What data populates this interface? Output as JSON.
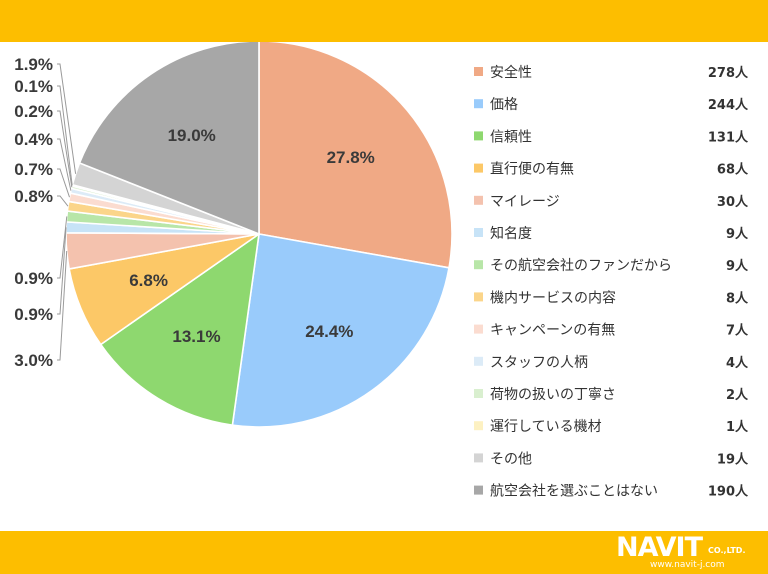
{
  "colors": {
    "band": "#FDBE00",
    "line": "#9a9a9a"
  },
  "chart_data": {
    "type": "pie",
    "categories": [
      "安全性",
      "価格",
      "信頼性",
      "直行便の有無",
      "マイレージ",
      "知名度",
      "その航空会社のファンだから",
      "機内サービスの内容",
      "キャンペーンの有無",
      "スタッフの人柄",
      "荷物の扱いの丁寧さ",
      "運行している機材",
      "その他",
      "航空会社を選ぶことはない"
    ],
    "values": [
      278,
      244,
      131,
      68,
      30,
      9,
      9,
      8,
      7,
      4,
      2,
      1,
      19,
      190
    ],
    "percent_labels": [
      "27.8%",
      "24.4%",
      "13.1%",
      "6.8%",
      "3.0%",
      "0.9%",
      "0.9%",
      "0.8%",
      "0.7%",
      "0.4%",
      "0.2%",
      "0.1%",
      "1.9%",
      "19.0%"
    ],
    "value_labels": [
      "278人",
      "244人",
      "131人",
      "68人",
      "30人",
      "9人",
      "9人",
      "8人",
      "7人",
      "4人",
      "2人",
      "1人",
      "19人",
      "190人"
    ],
    "slice_colors": [
      "#F0A985",
      "#99CBFB",
      "#8ED86F",
      "#FCC867",
      "#F4C2AE",
      "#C7E3F7",
      "#B8E6A8",
      "#FBD58A",
      "#FBDCD0",
      "#DCEBF7",
      "#D9EFCF",
      "#FDF1C2",
      "#D4D4D4",
      "#A7A7A7"
    ],
    "legend_position": "right",
    "start_angle_deg": 0,
    "direction": "clockwise"
  },
  "logo": {
    "main": "NAVIT",
    "co": "CO.,LTD.",
    "url": "www.navit-j.com"
  }
}
